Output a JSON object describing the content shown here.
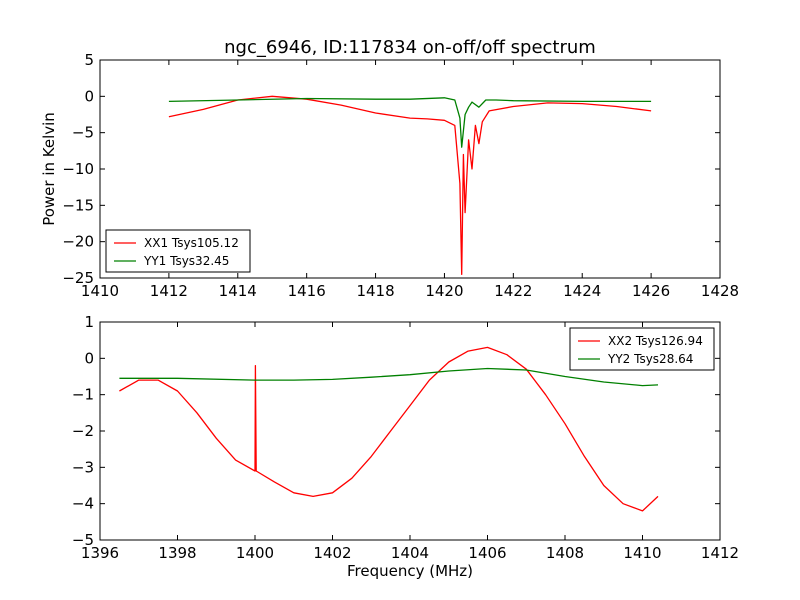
{
  "chart_data": [
    {
      "type": "line",
      "title": "ngc_6946, ID:117834 on-off/off spectrum",
      "xlabel": "",
      "ylabel": "Power in Kelvin",
      "xlim": [
        1410,
        1428
      ],
      "ylim": [
        -25,
        5
      ],
      "xticks": [
        1410,
        1412,
        1414,
        1416,
        1418,
        1420,
        1422,
        1424,
        1426,
        1428
      ],
      "yticks": [
        -25,
        -20,
        -15,
        -10,
        -5,
        0,
        5
      ],
      "grid": false,
      "legend_position": "lower-left",
      "series": [
        {
          "name": "XX1 Tsys105.12",
          "color": "#ff0000",
          "x": [
            1412,
            1413,
            1414,
            1415,
            1416,
            1417,
            1418,
            1419,
            1419.5,
            1420,
            1420.3,
            1420.45,
            1420.5,
            1420.55,
            1420.6,
            1420.7,
            1420.8,
            1420.9,
            1421,
            1421.1,
            1421.3,
            1422,
            1423,
            1424,
            1425,
            1426
          ],
          "y": [
            -2.8,
            -1.8,
            -0.5,
            0.0,
            -0.4,
            -1.2,
            -2.3,
            -3.0,
            -3.1,
            -3.3,
            -4.0,
            -12,
            -24.5,
            -8,
            -16,
            -6,
            -10,
            -4,
            -6.5,
            -3.5,
            -2.0,
            -1.4,
            -0.9,
            -1.0,
            -1.4,
            -2.0
          ]
        },
        {
          "name": "YY1 Tsys32.45",
          "color": "#008000",
          "x": [
            1412,
            1414,
            1416,
            1418,
            1419,
            1420,
            1420.3,
            1420.45,
            1420.5,
            1420.6,
            1420.7,
            1420.8,
            1421,
            1421.2,
            1421.5,
            1422,
            1424,
            1426
          ],
          "y": [
            -0.7,
            -0.5,
            -0.3,
            -0.4,
            -0.4,
            -0.2,
            -0.5,
            -3.0,
            -7.0,
            -2.5,
            -1.5,
            -0.8,
            -1.5,
            -0.5,
            -0.5,
            -0.6,
            -0.7,
            -0.7
          ]
        }
      ]
    },
    {
      "type": "line",
      "title": "",
      "xlabel": "Frequency (MHz)",
      "ylabel": "",
      "xlim": [
        1396,
        1412
      ],
      "ylim": [
        -5,
        1
      ],
      "xticks": [
        1396,
        1398,
        1400,
        1402,
        1404,
        1406,
        1408,
        1410,
        1412
      ],
      "yticks": [
        -5,
        -4,
        -3,
        -2,
        -1,
        0,
        1
      ],
      "grid": false,
      "legend_position": "top-right",
      "series": [
        {
          "name": "XX2 Tsys126.94",
          "color": "#ff0000",
          "x": [
            1396.5,
            1397,
            1397.5,
            1398,
            1398.5,
            1399,
            1399.5,
            1400,
            1400.01,
            1400.03,
            1400.5,
            1401,
            1401.5,
            1402,
            1402.5,
            1403,
            1403.5,
            1404,
            1404.5,
            1405,
            1405.5,
            1406,
            1406.5,
            1407,
            1407.5,
            1408,
            1408.5,
            1409,
            1409.5,
            1410,
            1410.4
          ],
          "y": [
            -0.9,
            -0.6,
            -0.6,
            -0.9,
            -1.5,
            -2.2,
            -2.8,
            -3.1,
            -0.2,
            -3.1,
            -3.4,
            -3.7,
            -3.8,
            -3.7,
            -3.3,
            -2.7,
            -2.0,
            -1.3,
            -0.6,
            -0.1,
            0.2,
            0.3,
            0.1,
            -0.3,
            -1.0,
            -1.8,
            -2.7,
            -3.5,
            -4.0,
            -4.2,
            -3.8
          ]
        },
        {
          "name": "YY2 Tsys28.64",
          "color": "#008000",
          "x": [
            1396.5,
            1398,
            1400,
            1401,
            1402,
            1403,
            1404,
            1405,
            1406,
            1407,
            1408,
            1409,
            1410,
            1410.4
          ],
          "y": [
            -0.55,
            -0.55,
            -0.6,
            -0.6,
            -0.58,
            -0.52,
            -0.45,
            -0.35,
            -0.28,
            -0.32,
            -0.5,
            -0.65,
            -0.75,
            -0.73
          ]
        }
      ]
    }
  ]
}
